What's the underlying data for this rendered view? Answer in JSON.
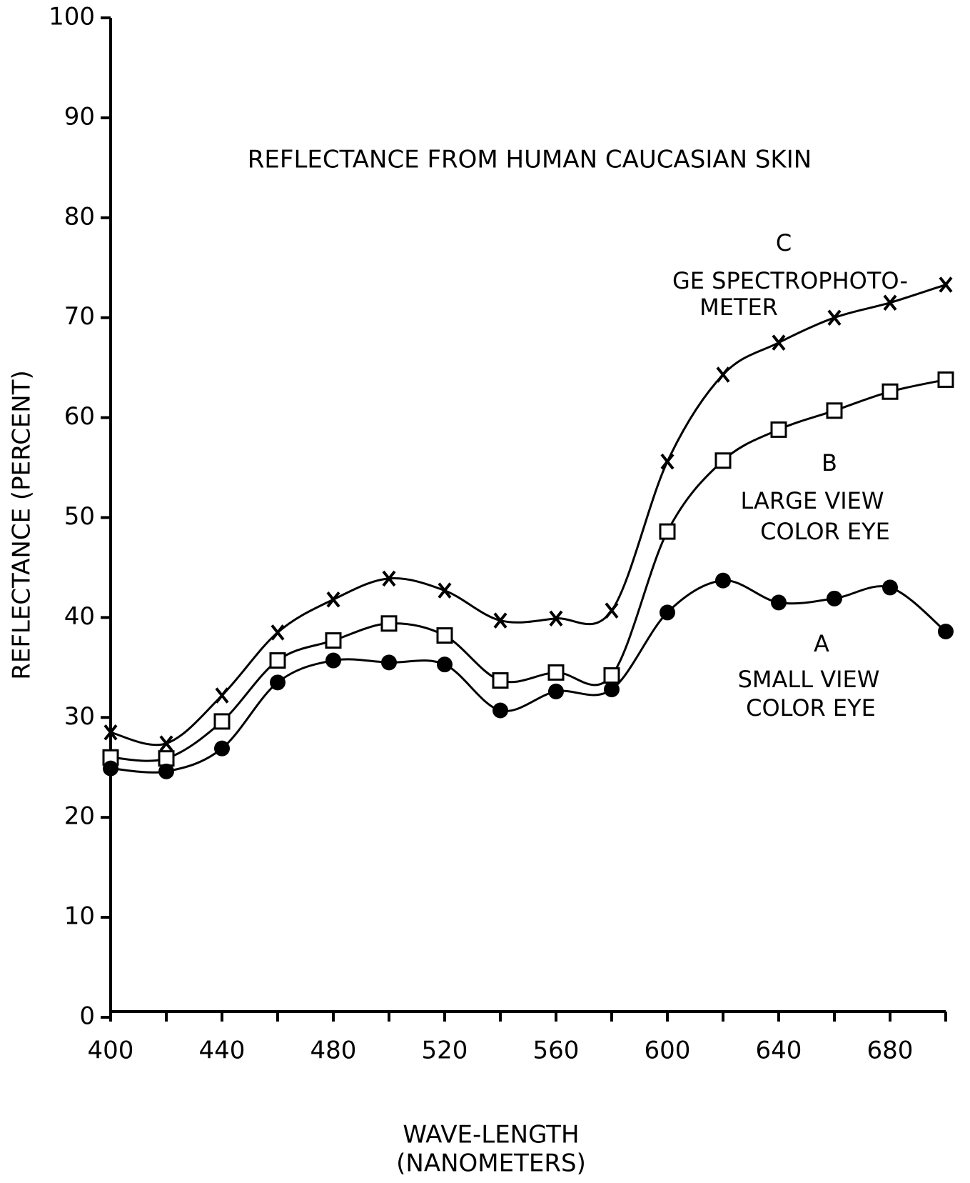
{
  "chart_data": {
    "type": "line",
    "title": "REFLECTANCE FROM HUMAN CAUCASIAN SKIN",
    "xlabel": [
      "WAVE-LENGTH",
      "(NANOMETERS)"
    ],
    "ylabel": "REFLECTANCE (PERCENT)",
    "x": [
      400,
      420,
      440,
      460,
      480,
      500,
      520,
      540,
      560,
      580,
      600,
      620,
      640,
      660,
      680,
      700
    ],
    "series": [
      {
        "name": "C",
        "label": [
          "GE SPECTROPHOTO-",
          "METER"
        ],
        "marker": "x",
        "color": "#000000",
        "values": [
          28.5,
          27.4,
          32.2,
          38.5,
          41.8,
          43.9,
          42.7,
          39.7,
          39.9,
          40.7,
          55.6,
          64.3,
          67.5,
          70.0,
          71.5,
          73.3
        ]
      },
      {
        "name": "B",
        "label": [
          "LARGE VIEW",
          "COLOR EYE"
        ],
        "marker": "square",
        "color": "#000000",
        "values": [
          26.0,
          25.9,
          29.6,
          35.7,
          37.7,
          39.4,
          38.2,
          33.7,
          34.5,
          34.2,
          48.6,
          55.7,
          58.8,
          60.7,
          62.6,
          63.8
        ]
      },
      {
        "name": "A",
        "label": [
          "SMALL VIEW",
          "COLOR EYE"
        ],
        "marker": "circle",
        "color": "#000000",
        "values": [
          24.9,
          24.6,
          26.9,
          33.5,
          35.7,
          35.5,
          35.3,
          30.7,
          32.6,
          32.8,
          40.5,
          43.7,
          41.5,
          41.9,
          43.0,
          38.6
        ]
      }
    ],
    "xlim": [
      400,
      700
    ],
    "xticks": [
      400,
      440,
      480,
      520,
      560,
      600,
      640,
      680
    ],
    "xminorticks": [
      420,
      460,
      500,
      540,
      580,
      620,
      660,
      700
    ],
    "ylim": [
      0,
      100
    ],
    "yticks": [
      0,
      10,
      20,
      30,
      40,
      50,
      60,
      70,
      80,
      90,
      100
    ],
    "grid": false
  }
}
